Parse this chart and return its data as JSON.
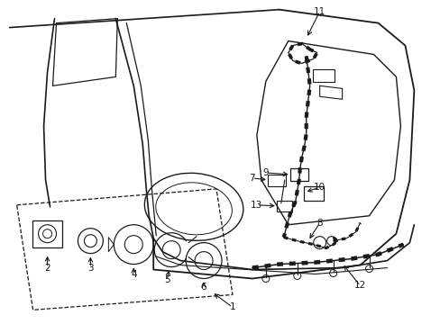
{
  "background_color": "#ffffff",
  "line_color": "#1a1a1a",
  "fig_width": 4.89,
  "fig_height": 3.6,
  "dpi": 100,
  "label_fontsize": 7.5
}
